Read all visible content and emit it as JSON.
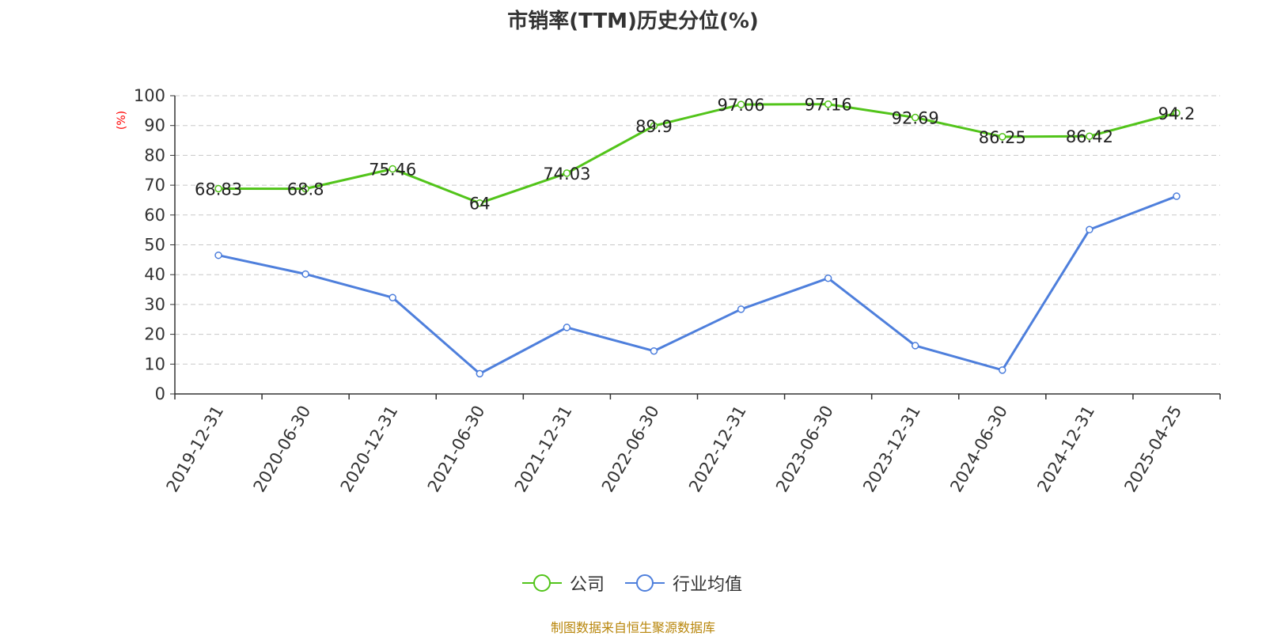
{
  "chart_data": {
    "type": "line",
    "title": "市销率(TTM)历史分位(%)",
    "ylabel": "(%)",
    "ylim": [
      0,
      100
    ],
    "yticks": [
      "0",
      "10",
      "20",
      "30",
      "40",
      "50",
      "60",
      "70",
      "80",
      "90",
      "100"
    ],
    "categories": [
      "2019-12-31",
      "2020-06-30",
      "2020-12-31",
      "2021-06-30",
      "2021-12-31",
      "2022-06-30",
      "2022-12-31",
      "2023-06-30",
      "2023-12-31",
      "2024-06-30",
      "2024-12-31",
      "2025-04-25"
    ],
    "series": [
      {
        "name": "公司",
        "color": "#52c41a",
        "values": [
          68.83,
          68.8,
          75.46,
          64,
          74.03,
          89.9,
          97.06,
          97.16,
          92.69,
          86.25,
          86.42,
          94.2
        ],
        "labels": [
          "68.83",
          "68.8",
          "75.46",
          "64",
          "74.03",
          "89.9",
          "97.06",
          "97.16",
          "92.69",
          "86.25",
          "86.42",
          "94.2"
        ]
      },
      {
        "name": "行业均值",
        "color": "#4e7fdc",
        "values": [
          46.5,
          40.2,
          32.3,
          6.8,
          22.3,
          14.4,
          28.4,
          38.8,
          16.2,
          8.0,
          55.1,
          66.3
        ]
      }
    ],
    "grid": true,
    "legend": "bottom-center",
    "source": "制图数据来自恒生聚源数据库"
  }
}
